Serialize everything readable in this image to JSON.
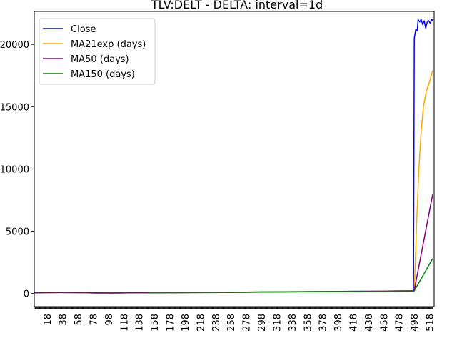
{
  "chart_data": {
    "type": "line",
    "title": "TLV:DELT - DELTA: interval=1d",
    "xlabel": "",
    "ylabel": "",
    "xlim": [
      1,
      524
    ],
    "ylim": [
      -1050,
      22650
    ],
    "grid": false,
    "legend_position": "top-left",
    "x_ticks": [
      18,
      38,
      58,
      78,
      98,
      118,
      138,
      158,
      178,
      198,
      218,
      238,
      258,
      278,
      298,
      318,
      338,
      358,
      378,
      398,
      418,
      438,
      458,
      478,
      498,
      518
    ],
    "y_ticks": [
      0,
      5000,
      10000,
      15000,
      20000
    ],
    "y_tick_labels": [
      "0",
      "5000",
      "10000",
      "15000",
      "20000"
    ],
    "series": [
      {
        "name": "Close",
        "color": "#0000ff",
        "points": [
          [
            1,
            60
          ],
          [
            20,
            100
          ],
          [
            50,
            70
          ],
          [
            80,
            40
          ],
          [
            100,
            30
          ],
          [
            120,
            60
          ],
          [
            150,
            70
          ],
          [
            200,
            80
          ],
          [
            250,
            100
          ],
          [
            280,
            110
          ],
          [
            300,
            130
          ],
          [
            350,
            150
          ],
          [
            400,
            170
          ],
          [
            450,
            190
          ],
          [
            490,
            220
          ],
          [
            497,
            230
          ],
          [
            498,
            20500
          ],
          [
            500,
            21200
          ],
          [
            502,
            21100
          ],
          [
            503,
            22000
          ],
          [
            505,
            21800
          ],
          [
            507,
            22000
          ],
          [
            509,
            21600
          ],
          [
            511,
            21900
          ],
          [
            513,
            21300
          ],
          [
            515,
            21800
          ],
          [
            517,
            21900
          ],
          [
            519,
            21700
          ],
          [
            521,
            22000
          ],
          [
            522,
            21900
          ]
        ]
      },
      {
        "name": "MA21exp (days)",
        "color": "#ffa500",
        "points": [
          [
            1,
            60
          ],
          [
            20,
            90
          ],
          [
            50,
            75
          ],
          [
            80,
            45
          ],
          [
            100,
            35
          ],
          [
            120,
            55
          ],
          [
            150,
            70
          ],
          [
            200,
            80
          ],
          [
            250,
            95
          ],
          [
            280,
            110
          ],
          [
            300,
            125
          ],
          [
            350,
            145
          ],
          [
            400,
            165
          ],
          [
            450,
            185
          ],
          [
            497,
            225
          ],
          [
            498,
            250
          ],
          [
            501,
            5500
          ],
          [
            504,
            10000
          ],
          [
            507,
            13000
          ],
          [
            510,
            15000
          ],
          [
            514,
            16300
          ],
          [
            518,
            17000
          ],
          [
            522,
            17900
          ]
        ]
      },
      {
        "name": "MA50 (days)",
        "color": "#800080",
        "points": [
          [
            1,
            60
          ],
          [
            50,
            80
          ],
          [
            80,
            55
          ],
          [
            100,
            45
          ],
          [
            120,
            55
          ],
          [
            150,
            65
          ],
          [
            200,
            75
          ],
          [
            250,
            90
          ],
          [
            280,
            105
          ],
          [
            300,
            120
          ],
          [
            350,
            140
          ],
          [
            400,
            160
          ],
          [
            450,
            180
          ],
          [
            497,
            220
          ],
          [
            498,
            250
          ],
          [
            522,
            7950
          ]
        ]
      },
      {
        "name": "MA150 (days)",
        "color": "#008000",
        "points": [
          [
            150,
            60
          ],
          [
            200,
            70
          ],
          [
            250,
            85
          ],
          [
            280,
            100
          ],
          [
            300,
            110
          ],
          [
            350,
            130
          ],
          [
            400,
            150
          ],
          [
            450,
            170
          ],
          [
            497,
            200
          ],
          [
            498,
            210
          ],
          [
            522,
            2800
          ]
        ]
      }
    ]
  }
}
